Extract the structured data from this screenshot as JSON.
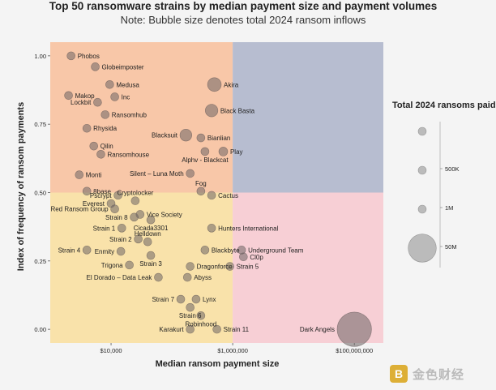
{
  "title": "Top 50 ransomware strains by median payment size and payment volumes",
  "subtitle": "Note: Bubble size denotes total 2024 ransom inflows",
  "watermark": {
    "text": "金色财经",
    "logo_glyph": "B"
  },
  "chart_data": {
    "type": "scatter",
    "x_scale": "log",
    "xlabel": "Median ransom payment size",
    "ylabel": "Index of frequency of ransom payments",
    "xlim": [
      1000,
      300000000
    ],
    "ylim": [
      -0.05,
      1.05
    ],
    "x_ticks": [
      {
        "value": 10000,
        "label": "$10,000"
      },
      {
        "value": 1000000,
        "label": "$1,000,000"
      },
      {
        "value": 100000000,
        "label": "$100,000,000"
      }
    ],
    "y_ticks": [
      {
        "value": 0,
        "label": "0.00"
      },
      {
        "value": 0.25,
        "label": "0.25"
      },
      {
        "value": 0.5,
        "label": "0.50"
      },
      {
        "value": 0.75,
        "label": "0.75"
      },
      {
        "value": 1.0,
        "label": "1.00"
      }
    ],
    "quadrants": [
      {
        "name": "top-left",
        "color": "#f8c7a8"
      },
      {
        "name": "top-right",
        "color": "#b7bdd0"
      },
      {
        "name": "bottom-left",
        "color": "#f9e2aa"
      },
      {
        "name": "bottom-right",
        "color": "#f7cfd5"
      }
    ],
    "grid": false,
    "legend": {
      "title": "Total 2024 ransoms paid",
      "placement": "right",
      "entries": [
        {
          "label": "",
          "value": 100000
        },
        {
          "label": "500K",
          "value": 500000
        },
        {
          "label": "1M",
          "value": 1000000
        },
        {
          "label": "50M",
          "value": 50000000
        }
      ]
    },
    "points": [
      {
        "name": "Phobos",
        "x": 2200,
        "y": 1.0,
        "size": 400000,
        "label_side": "right"
      },
      {
        "name": "Globeimposter",
        "x": 5500,
        "y": 0.96,
        "size": 350000,
        "label_side": "right"
      },
      {
        "name": "Medusa",
        "x": 9500,
        "y": 0.895,
        "size": 400000,
        "label_side": "right"
      },
      {
        "name": "Makop",
        "x": 2000,
        "y": 0.855,
        "size": 400000,
        "label_side": "right"
      },
      {
        "name": "Inc",
        "x": 11500,
        "y": 0.85,
        "size": 450000,
        "label_side": "right"
      },
      {
        "name": "Lockbit",
        "x": 6000,
        "y": 0.83,
        "size": 2500000,
        "label_side": "left"
      },
      {
        "name": "Ransomhub",
        "x": 8000,
        "y": 0.785,
        "size": 400000,
        "label_side": "right"
      },
      {
        "name": "Akira",
        "x": 500000,
        "y": 0.895,
        "size": 12000000,
        "label_side": "right"
      },
      {
        "name": "Black Basta",
        "x": 450000,
        "y": 0.8,
        "size": 10000000,
        "label_side": "right"
      },
      {
        "name": "Rhysida",
        "x": 4000,
        "y": 0.735,
        "size": 400000,
        "label_side": "right"
      },
      {
        "name": "Blacksuit",
        "x": 170000,
        "y": 0.71,
        "size": 9000000,
        "label_side": "left"
      },
      {
        "name": "Bianlian",
        "x": 300000,
        "y": 0.7,
        "size": 1500000,
        "label_side": "right"
      },
      {
        "name": "Qilin",
        "x": 5200,
        "y": 0.67,
        "size": 400000,
        "label_side": "right"
      },
      {
        "name": "Play",
        "x": 700000,
        "y": 0.65,
        "size": 5000000,
        "label_side": "right"
      },
      {
        "name": "Ransomhouse",
        "x": 6800,
        "y": 0.64,
        "size": 350000,
        "label_side": "right"
      },
      {
        "name": "Alphv - Blackcat",
        "x": 350000,
        "y": 0.65,
        "size": 3500000,
        "label_side": "below"
      },
      {
        "name": "Monti",
        "x": 3000,
        "y": 0.565,
        "size": 400000,
        "label_side": "right"
      },
      {
        "name": "Silent – Luna Moth",
        "x": 200000,
        "y": 0.57,
        "size": 300000,
        "label_side": "left"
      },
      {
        "name": "8base",
        "x": 4000,
        "y": 0.505,
        "size": 400000,
        "label_side": "right"
      },
      {
        "name": "Fog",
        "x": 300000,
        "y": 0.505,
        "size": 250000,
        "label_side": "above"
      },
      {
        "name": "Cactus",
        "x": 450000,
        "y": 0.49,
        "size": 400000,
        "label_side": "right"
      },
      {
        "name": "Pscrypt",
        "x": 13000,
        "y": 0.49,
        "size": 200000,
        "label_side": "left"
      },
      {
        "name": "Cryptolocker",
        "x": 25000,
        "y": 0.47,
        "size": 350000,
        "label_side": "above"
      },
      {
        "name": "Everest",
        "x": 10000,
        "y": 0.46,
        "size": 400000,
        "label_side": "left"
      },
      {
        "name": "Red Ransom Group",
        "x": 11500,
        "y": 0.44,
        "size": 400000,
        "label_side": "left"
      },
      {
        "name": "Vice Society",
        "x": 30000,
        "y": 0.42,
        "size": 400000,
        "label_side": "right"
      },
      {
        "name": "Strain 8",
        "x": 24000,
        "y": 0.41,
        "size": 300000,
        "label_side": "left"
      },
      {
        "name": "Hunters International",
        "x": 450000,
        "y": 0.37,
        "size": 450000,
        "label_side": "right"
      },
      {
        "name": "Cicada3301",
        "x": 45000,
        "y": 0.4,
        "size": 250000,
        "label_side": "below"
      },
      {
        "name": "Strain 1",
        "x": 15000,
        "y": 0.37,
        "size": 400000,
        "label_side": "left"
      },
      {
        "name": "Strain 2",
        "x": 28000,
        "y": 0.33,
        "size": 400000,
        "label_side": "left"
      },
      {
        "name": "Helldown",
        "x": 40000,
        "y": 0.32,
        "size": 400000,
        "label_side": "above"
      },
      {
        "name": "Strain 4",
        "x": 4000,
        "y": 0.29,
        "size": 400000,
        "label_side": "left"
      },
      {
        "name": "Blackbyte",
        "x": 350000,
        "y": 0.29,
        "size": 400000,
        "label_side": "right"
      },
      {
        "name": "Underground Team",
        "x": 1400000,
        "y": 0.29,
        "size": 400000,
        "label_side": "right"
      },
      {
        "name": "Enmity",
        "x": 14500,
        "y": 0.285,
        "size": 400000,
        "label_side": "left"
      },
      {
        "name": "Cl0p",
        "x": 1500000,
        "y": 0.265,
        "size": 600000,
        "label_side": "right"
      },
      {
        "name": "Strain 3",
        "x": 45000,
        "y": 0.27,
        "size": 250000,
        "label_side": "below"
      },
      {
        "name": "Trigona",
        "x": 20000,
        "y": 0.235,
        "size": 400000,
        "label_side": "left"
      },
      {
        "name": "Dragonforce",
        "x": 200000,
        "y": 0.23,
        "size": 400000,
        "label_side": "right"
      },
      {
        "name": "Strain 5",
        "x": 900000,
        "y": 0.23,
        "size": 250000,
        "label_side": "right"
      },
      {
        "name": "El Dorado – Data Leak",
        "x": 60000,
        "y": 0.19,
        "size": 200000,
        "label_side": "left"
      },
      {
        "name": "Abyss",
        "x": 180000,
        "y": 0.19,
        "size": 250000,
        "label_side": "right"
      },
      {
        "name": "Strain 7",
        "x": 140000,
        "y": 0.11,
        "size": 400000,
        "label_side": "left"
      },
      {
        "name": "Lynx",
        "x": 250000,
        "y": 0.11,
        "size": 400000,
        "label_side": "right"
      },
      {
        "name": "Strain 6",
        "x": 200000,
        "y": 0.08,
        "size": 250000,
        "label_side": "below"
      },
      {
        "name": "Robinhood",
        "x": 300000,
        "y": 0.05,
        "size": 300000,
        "label_side": "below"
      },
      {
        "name": "Karakurt",
        "x": 200000,
        "y": 0.0,
        "size": 450000,
        "label_side": "left"
      },
      {
        "name": "Strain 11",
        "x": 550000,
        "y": 0.0,
        "size": 450000,
        "label_side": "right"
      },
      {
        "name": "Dark Angels",
        "x": 100000000,
        "y": 0.0,
        "size": 75000000,
        "label_side": "left"
      }
    ]
  }
}
